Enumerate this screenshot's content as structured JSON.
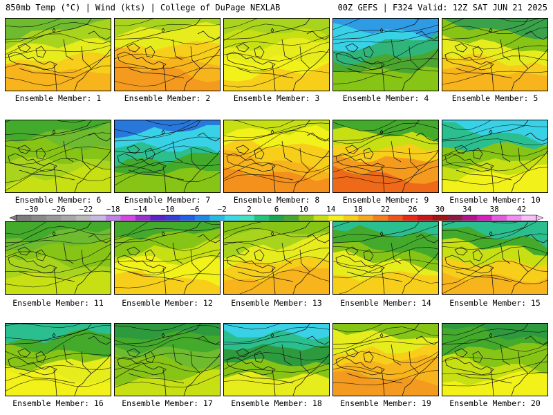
{
  "header": {
    "left": "850mb Temp (°C) | Wind (kts) | College of DuPage NEXLAB",
    "right": "00Z GEFS | F324 Valid: 12Z SAT JUN 21 2025"
  },
  "colorbar": {
    "labels": [
      "−30",
      "−26",
      "−22",
      "−18",
      "−14",
      "−10",
      "−6",
      "−2",
      "2",
      "6",
      "10",
      "14",
      "18",
      "22",
      "26",
      "30",
      "34",
      "38",
      "42"
    ],
    "colors": [
      "#7b7b7b",
      "#8a8a8a",
      "#999999",
      "#a8a8a8",
      "#b9b9b9",
      "#c9b7e4",
      "#c080e6",
      "#d447e4",
      "#9a2fd0",
      "#5b24c8",
      "#3a3cd6",
      "#2260e8",
      "#1f8ae6",
      "#27b8e6",
      "#3ad9e6",
      "#44e0c2",
      "#21c57e",
      "#1aa752",
      "#43aa2c",
      "#86c416",
      "#c6e013",
      "#f2f21a",
      "#f7cf1a",
      "#f8a81c",
      "#f4801c",
      "#ee5518",
      "#e82a16",
      "#c8171c",
      "#a01414",
      "#8a1c42",
      "#b2148c",
      "#d41ec0",
      "#e65ae0",
      "#f28cf0",
      "#f6bff6"
    ]
  },
  "panels": [
    {
      "caption": "Ensemble Member: 1",
      "palette": [
        "#6fbb2f",
        "#a9d41e",
        "#e7ec1c",
        "#f7cf1a",
        "#f7b41d"
      ],
      "wind": "#000000"
    },
    {
      "caption": "Ensemble Member: 2",
      "palette": [
        "#a9d41e",
        "#e7ec1c",
        "#f7cf1a",
        "#f7b41d",
        "#f49b1f"
      ],
      "wind": "#000000"
    },
    {
      "caption": "Ensemble Member: 3",
      "palette": [
        "#a9d41e",
        "#c6e013",
        "#e7ec1c",
        "#f2f21a",
        "#f7cf1a"
      ],
      "wind": "#000000"
    },
    {
      "caption": "Ensemble Member: 4",
      "palette": [
        "#2f9be4",
        "#39d1e6",
        "#2fb47a",
        "#4aa62e",
        "#86c416"
      ],
      "wind": "#000000"
    },
    {
      "caption": "Ensemble Member: 5",
      "palette": [
        "#3aa34a",
        "#86c416",
        "#e7ec1c",
        "#f7cf1a",
        "#f7b41d"
      ],
      "wind": "#000000"
    },
    {
      "caption": "Ensemble Member: 6",
      "palette": [
        "#43aa2c",
        "#6fbb2f",
        "#86c416",
        "#a9d41e",
        "#c6e013"
      ],
      "wind": "#000000"
    },
    {
      "caption": "Ensemble Member: 7",
      "palette": [
        "#2878dc",
        "#39d1e6",
        "#2bbf90",
        "#43aa2c",
        "#86c416"
      ],
      "wind": "#000000"
    },
    {
      "caption": "Ensemble Member: 8",
      "palette": [
        "#c6e013",
        "#f2f21a",
        "#f7cf1a",
        "#f7b41d",
        "#f4901c"
      ],
      "wind": "#000000"
    },
    {
      "caption": "Ensemble Member: 9",
      "palette": [
        "#43aa2c",
        "#c6e013",
        "#f7cf1a",
        "#f49b1f",
        "#ee6a18"
      ],
      "wind": "#000000"
    },
    {
      "caption": "Ensemble Member: 10",
      "palette": [
        "#39d1e6",
        "#2bbf90",
        "#86c416",
        "#c6e013",
        "#f2f21a"
      ],
      "wind": "#000000"
    },
    {
      "caption": "Ensemble Member: 11",
      "palette": [
        "#43aa2c",
        "#6fbb2f",
        "#86c416",
        "#a9d41e",
        "#c6e013"
      ],
      "wind": "#000000"
    },
    {
      "caption": "Ensemble Member: 12",
      "palette": [
        "#43aa2c",
        "#86c416",
        "#c6e013",
        "#f2f21a",
        "#f7cf1a"
      ],
      "wind": "#000000"
    },
    {
      "caption": "Ensemble Member: 13",
      "palette": [
        "#86c416",
        "#a9d41e",
        "#e7ec1c",
        "#f7cf1a",
        "#f7b41d"
      ],
      "wind": "#000000"
    },
    {
      "caption": "Ensemble Member: 14",
      "palette": [
        "#2bbf90",
        "#43aa2c",
        "#86c416",
        "#e7ec1c",
        "#f7cf1a"
      ],
      "wind": "#000000"
    },
    {
      "caption": "Ensemble Member: 15",
      "palette": [
        "#2bbf90",
        "#43aa2c",
        "#c6e013",
        "#f7cf1a",
        "#f7b41d"
      ],
      "wind": "#000000"
    },
    {
      "caption": "Ensemble Member: 16",
      "palette": [
        "#2bbf90",
        "#43aa2c",
        "#86c416",
        "#e7ec1c",
        "#f2f21a"
      ],
      "wind": "#000000"
    },
    {
      "caption": "Ensemble Member: 17",
      "palette": [
        "#2e9a3e",
        "#43aa2c",
        "#6fbb2f",
        "#86c416",
        "#c6e013"
      ],
      "wind": "#000000"
    },
    {
      "caption": "Ensemble Member: 18",
      "palette": [
        "#39d1e6",
        "#2bbf90",
        "#2e9a3e",
        "#86c416",
        "#e7ec1c"
      ],
      "wind": "#000000"
    },
    {
      "caption": "Ensemble Member: 19",
      "palette": [
        "#86c416",
        "#e7ec1c",
        "#f7cf1a",
        "#f7b41d",
        "#f49b1f"
      ],
      "wind": "#000000"
    },
    {
      "caption": "Ensemble Member: 20",
      "palette": [
        "#2e9a3e",
        "#43aa2c",
        "#86c416",
        "#c6e013",
        "#f2f21a"
      ],
      "wind": "#000000"
    }
  ]
}
